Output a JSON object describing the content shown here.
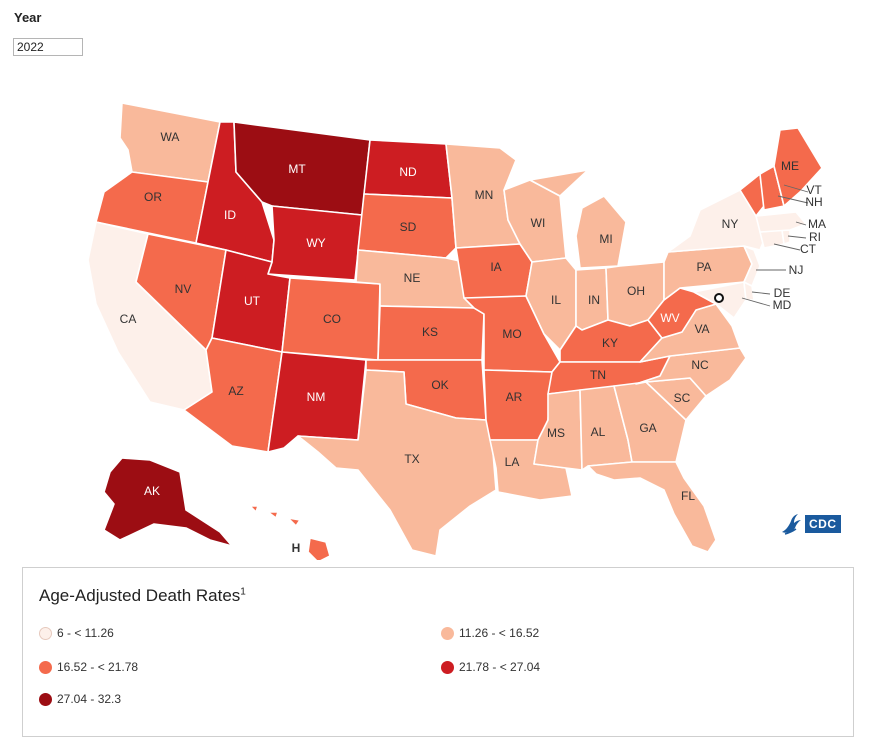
{
  "filter": {
    "label": "Year",
    "value": "2022"
  },
  "colors": {
    "bin1": "#fdf0ea",
    "bin2": "#f9b99b",
    "bin3": "#f46a4c",
    "bin4": "#cd1d22",
    "bin5": "#9c0d13",
    "border": "#ffffff"
  },
  "map": {
    "states": [
      {
        "abbr": "WA",
        "bin": "bin2"
      },
      {
        "abbr": "OR",
        "bin": "bin3"
      },
      {
        "abbr": "CA",
        "bin": "bin1"
      },
      {
        "abbr": "ID",
        "bin": "bin4"
      },
      {
        "abbr": "NV",
        "bin": "bin3"
      },
      {
        "abbr": "MT",
        "bin": "bin5"
      },
      {
        "abbr": "WY",
        "bin": "bin4"
      },
      {
        "abbr": "UT",
        "bin": "bin4"
      },
      {
        "abbr": "AZ",
        "bin": "bin3"
      },
      {
        "abbr": "CO",
        "bin": "bin3"
      },
      {
        "abbr": "NM",
        "bin": "bin4"
      },
      {
        "abbr": "ND",
        "bin": "bin4"
      },
      {
        "abbr": "SD",
        "bin": "bin3"
      },
      {
        "abbr": "NE",
        "bin": "bin2"
      },
      {
        "abbr": "KS",
        "bin": "bin3"
      },
      {
        "abbr": "OK",
        "bin": "bin3"
      },
      {
        "abbr": "TX",
        "bin": "bin2"
      },
      {
        "abbr": "MN",
        "bin": "bin2"
      },
      {
        "abbr": "IA",
        "bin": "bin3"
      },
      {
        "abbr": "MO",
        "bin": "bin3"
      },
      {
        "abbr": "AR",
        "bin": "bin3"
      },
      {
        "abbr": "LA",
        "bin": "bin2"
      },
      {
        "abbr": "WI",
        "bin": "bin2"
      },
      {
        "abbr": "IL",
        "bin": "bin2"
      },
      {
        "abbr": "MI",
        "bin": "bin2"
      },
      {
        "abbr": "IN",
        "bin": "bin2"
      },
      {
        "abbr": "OH",
        "bin": "bin2"
      },
      {
        "abbr": "KY",
        "bin": "bin3"
      },
      {
        "abbr": "TN",
        "bin": "bin3"
      },
      {
        "abbr": "MS",
        "bin": "bin2"
      },
      {
        "abbr": "AL",
        "bin": "bin2"
      },
      {
        "abbr": "GA",
        "bin": "bin2"
      },
      {
        "abbr": "FL",
        "bin": "bin2"
      },
      {
        "abbr": "SC",
        "bin": "bin2"
      },
      {
        "abbr": "NC",
        "bin": "bin2"
      },
      {
        "abbr": "VA",
        "bin": "bin2"
      },
      {
        "abbr": "WV",
        "bin": "bin3"
      },
      {
        "abbr": "PA",
        "bin": "bin2"
      },
      {
        "abbr": "NY",
        "bin": "bin1"
      },
      {
        "abbr": "ME",
        "bin": "bin3"
      },
      {
        "abbr": "VT",
        "bin": "bin3"
      },
      {
        "abbr": "NH",
        "bin": "bin3"
      },
      {
        "abbr": "MA",
        "bin": "bin1"
      },
      {
        "abbr": "RI",
        "bin": "bin1"
      },
      {
        "abbr": "CT",
        "bin": "bin1"
      },
      {
        "abbr": "NJ",
        "bin": "bin1"
      },
      {
        "abbr": "DE",
        "bin": "bin1"
      },
      {
        "abbr": "MD",
        "bin": "bin1"
      },
      {
        "abbr": "AK",
        "bin": "bin5"
      },
      {
        "abbr": "HI",
        "label": "H",
        "bin": "bin3"
      }
    ]
  },
  "legend": {
    "title": "Age-Adjusted Death Rates",
    "footnote": "1",
    "items": [
      {
        "label": "6 - < 11.26",
        "bin": "bin1"
      },
      {
        "label": "11.26 - < 16.52",
        "bin": "bin2"
      },
      {
        "label": "16.52 - < 21.78",
        "bin": "bin3"
      },
      {
        "label": "21.78 - < 27.04",
        "bin": "bin4"
      },
      {
        "label": "27.04 - 32.3",
        "bin": "bin5"
      }
    ]
  },
  "branding": {
    "logo_text": "CDC",
    "icon": "hhs-eagle-icon"
  }
}
